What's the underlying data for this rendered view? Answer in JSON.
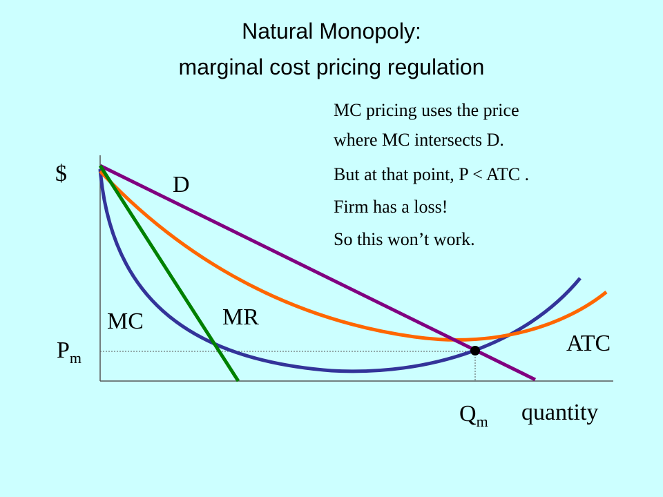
{
  "title": [
    "Natural Monopoly:",
    "marginal cost pricing regulation"
  ],
  "notes": [
    "MC pricing uses the price",
    "where MC intersects D.",
    "But at that point, P < ATC .",
    "Firm has a loss!",
    "So this won’t work."
  ],
  "labels": {
    "dollar": "$",
    "demand": "D",
    "mc": "MC",
    "mr": "MR",
    "atc": "ATC",
    "price": {
      "main": "P",
      "sub": "m"
    },
    "quantity_m": {
      "main": "Q",
      "sub": "m"
    },
    "quantity": "quantity"
  }
}
